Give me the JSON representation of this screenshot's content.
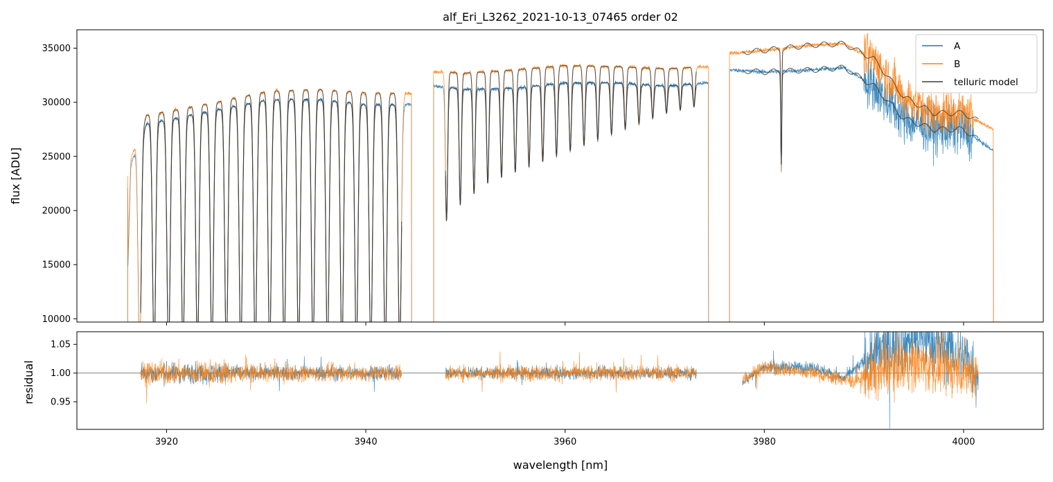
{
  "chart_data": [
    {
      "id": "flux",
      "type": "line",
      "title": "alf_Eri_L3262_2021-10-13_07465  order 02",
      "xlabel": "",
      "ylabel": "flux [ADU]",
      "xlim": [
        3911,
        4008
      ],
      "ylim": [
        9700,
        36700
      ],
      "yticks": [
        10000,
        15000,
        20000,
        25000,
        30000,
        35000
      ],
      "xticks": [
        3920,
        3940,
        3960,
        3980,
        4000
      ],
      "xtick_labels_visible": false,
      "legend": {
        "placement": "top-right",
        "entries": [
          "A",
          "B",
          "telluric model"
        ]
      },
      "series": [
        {
          "name": "A",
          "color": "#1f77b4",
          "segments": [
            {
              "x_start": 3916.1,
              "x_end": 3944.6,
              "continuum": [
                [
                  3916.1,
                  22000
                ],
                [
                  3916.5,
                  24500
                ],
                [
                  3918,
                  28000
                ],
                [
                  3925,
                  29300
                ],
                [
                  3930,
                  30200
                ],
                [
                  3935,
                  30300
                ],
                [
                  3940,
                  29800
                ],
                [
                  3944.6,
                  29800
                ]
              ]
            },
            {
              "x_start": 3946.8,
              "x_end": 3974.4,
              "continuum": [
                [
                  3946.8,
                  31500
                ],
                [
                  3950,
                  31200
                ],
                [
                  3955,
                  31300
                ],
                [
                  3960,
                  31800
                ],
                [
                  3965,
                  31800
                ],
                [
                  3970,
                  31500
                ],
                [
                  3974.4,
                  31800
                ]
              ]
            },
            {
              "x_start": 3976.5,
              "x_end": 4003.0,
              "continuum": [
                [
                  3976.5,
                  33000
                ],
                [
                  3980,
                  32800
                ],
                [
                  3985,
                  33000
                ],
                [
                  3988,
                  33200
                ],
                [
                  3991,
                  31500
                ],
                [
                  3994,
                  28500
                ],
                [
                  3997,
                  27500
                ],
                [
                  4000,
                  27500
                ],
                [
                  4003,
                  25500
                ]
              ]
            }
          ]
        },
        {
          "name": "B",
          "color": "#ff7f0e",
          "segments": [
            {
              "x_start": 3916.1,
              "x_end": 3944.6,
              "continuum": [
                [
                  3916.1,
                  23000
                ],
                [
                  3916.5,
                  25000
                ],
                [
                  3918,
                  28800
                ],
                [
                  3925,
                  30000
                ],
                [
                  3930,
                  31000
                ],
                [
                  3935,
                  31200
                ],
                [
                  3940,
                  30900
                ],
                [
                  3944.6,
                  30800
                ]
              ]
            },
            {
              "x_start": 3946.8,
              "x_end": 3974.4,
              "continuum": [
                [
                  3946.8,
                  32800
                ],
                [
                  3950,
                  32700
                ],
                [
                  3955,
                  33000
                ],
                [
                  3960,
                  33400
                ],
                [
                  3965,
                  33300
                ],
                [
                  3970,
                  33100
                ],
                [
                  3974.4,
                  33300
                ]
              ]
            },
            {
              "x_start": 3976.5,
              "x_end": 4003.0,
              "continuum": [
                [
                  3976.5,
                  34500
                ],
                [
                  3980,
                  34800
                ],
                [
                  3985,
                  35300
                ],
                [
                  3988,
                  35400
                ],
                [
                  3991,
                  34000
                ],
                [
                  3994,
                  30500
                ],
                [
                  3997,
                  29000
                ],
                [
                  4000,
                  29000
                ],
                [
                  4003,
                  27500
                ]
              ]
            }
          ]
        },
        {
          "name": "telluric model",
          "color": "#3a3a3a",
          "segments": [
            {
              "x_start": 3917.4,
              "x_end": 3943.6,
              "absorption_lines_min_flux": 9700
            },
            {
              "x_start": 3948.0,
              "x_end": 3973.2,
              "absorption_line_depths": [
                19000,
                20500,
                21500,
                22500,
                23000,
                23500,
                24000,
                24500,
                25000,
                25500,
                26000,
                26500,
                27000,
                27500,
                28000,
                28500,
                29000,
                29300,
                29600
              ]
            },
            {
              "x_start": 3977.8,
              "x_end": 4001.5,
              "smooth": true
            }
          ]
        }
      ]
    },
    {
      "id": "residual",
      "type": "line",
      "title": "",
      "xlabel": "wavelength [nm]",
      "ylabel": "residual",
      "xlim": [
        3911,
        4008
      ],
      "ylim": [
        0.902,
        1.072
      ],
      "yticks": [
        0.95,
        1.0,
        1.05
      ],
      "ytick_labels": [
        "0.95",
        "1.00",
        "1.05"
      ],
      "xticks": [
        3920,
        3940,
        3960,
        3980,
        4000
      ],
      "reference_line": 1.0,
      "series": [
        {
          "name": "A",
          "color": "#1f77b4",
          "segments": [
            {
              "x_start": 3917.4,
              "x_end": 3943.6,
              "scatter": 0.012
            },
            {
              "x_start": 3948.0,
              "x_end": 3973.2,
              "scatter": 0.01
            },
            {
              "x_start": 3977.8,
              "x_end": 4001.5,
              "scatter": 0.01,
              "wave": [
                [
                  3977.8,
                  0.985
                ],
                [
                  3980,
                  1.01
                ],
                [
                  3985,
                  1.01
                ],
                [
                  3988,
                  0.99
                ],
                [
                  3990,
                  1.02
                ],
                [
                  3993,
                  1.05
                ],
                [
                  3996,
                  1.06
                ],
                [
                  4000,
                  1.03
                ],
                [
                  4001.5,
                  1.0
                ]
              ]
            }
          ]
        },
        {
          "name": "B",
          "color": "#ff7f0e",
          "segments": [
            {
              "x_start": 3917.4,
              "x_end": 3943.6,
              "scatter": 0.014
            },
            {
              "x_start": 3948.0,
              "x_end": 3973.2,
              "scatter": 0.013
            },
            {
              "x_start": 3977.8,
              "x_end": 4001.5,
              "scatter": 0.012,
              "wave": [
                [
                  3977.8,
                  0.99
                ],
                [
                  3980,
                  1.01
                ],
                [
                  3985,
                  1.0
                ],
                [
                  3989,
                  0.985
                ],
                [
                  3991,
                  1.0
                ],
                [
                  3994,
                  1.02
                ],
                [
                  3998,
                  1.01
                ],
                [
                  4001.5,
                  1.0
                ]
              ]
            }
          ]
        }
      ]
    }
  ]
}
